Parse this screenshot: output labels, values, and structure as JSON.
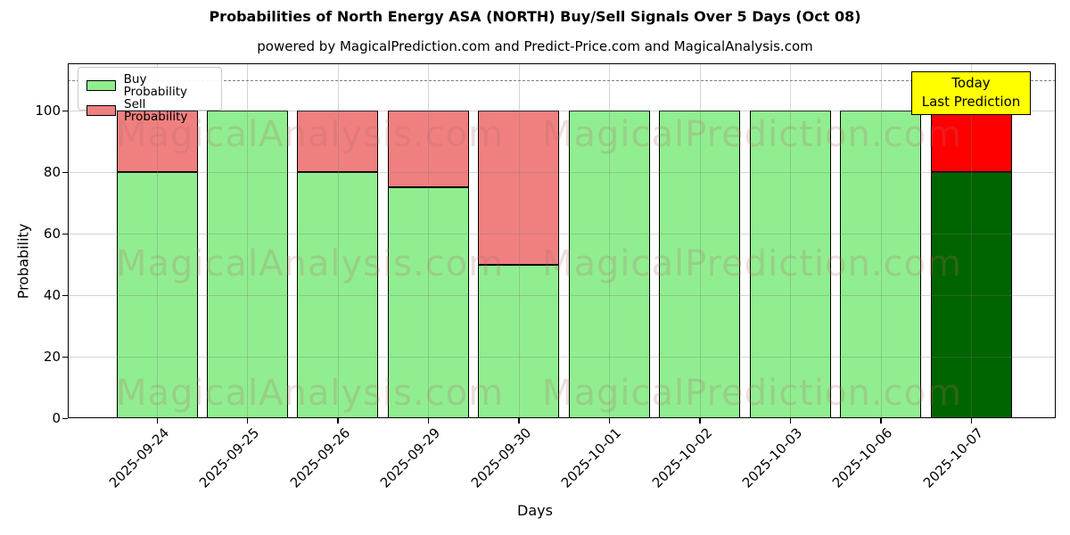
{
  "title": "Probabilities of North Energy ASA (NORTH) Buy/Sell Signals Over 5 Days (Oct 08)",
  "subtitle": "powered by MagicalPrediction.com and Predict-Price.com and MagicalAnalysis.com",
  "axes": {
    "ylabel": "Probability",
    "xlabel": "Days",
    "yticks": [
      0,
      20,
      40,
      60,
      80,
      100
    ],
    "ylim": [
      0,
      115.4
    ],
    "grid": "on"
  },
  "legend": {
    "position": "upper-left",
    "items": [
      {
        "label": "Buy Probability",
        "color": "#90EE90"
      },
      {
        "label": "Sell Probability",
        "color": "#F08080"
      }
    ]
  },
  "annotation": {
    "line1": "Today",
    "line2": "Last Prediction",
    "bg_color": "#FFFF00"
  },
  "watermarks": {
    "left_text": "MagicalAnalysis.com",
    "right_text": "MagicalPrediction.com"
  },
  "chart_data": {
    "type": "bar",
    "stacked": true,
    "categories": [
      "2025-09-24",
      "2025-09-25",
      "2025-09-26",
      "2025-09-29",
      "2025-09-30",
      "2025-10-01",
      "2025-10-02",
      "2025-10-03",
      "2025-10-06",
      "2025-10-07"
    ],
    "series": [
      {
        "name": "Buy Probability",
        "values": [
          80,
          100,
          80,
          75,
          50,
          100,
          100,
          100,
          100,
          80
        ]
      },
      {
        "name": "Sell Probability",
        "values": [
          20,
          0,
          20,
          25,
          50,
          0,
          0,
          0,
          0,
          20
        ]
      }
    ],
    "today_index": 9,
    "dashed_threshold_y": 110,
    "colors": {
      "buy": "#90EE90",
      "sell": "#F08080",
      "today_buy": "#006400",
      "today_sell": "#FF0000",
      "threshold_dash": "#7f7f7f"
    }
  }
}
